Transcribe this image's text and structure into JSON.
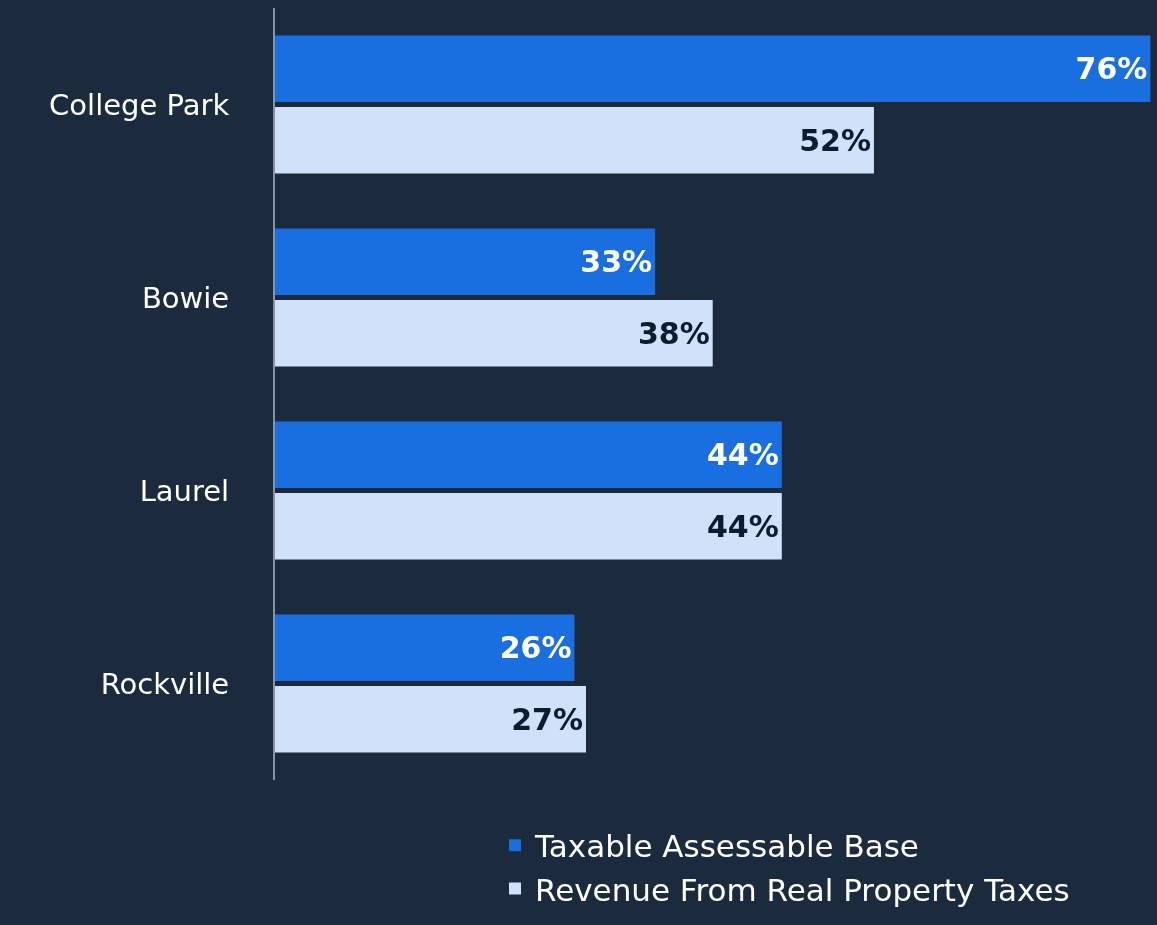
{
  "chart_data": {
    "type": "bar",
    "orientation": "horizontal",
    "categories": [
      "College Park",
      "Bowie",
      "Laurel",
      "Rockville"
    ],
    "series": [
      {
        "name": "Taxable Assessable Base",
        "color": "#1a6fe0",
        "values": [
          76,
          33,
          44,
          26
        ],
        "value_labels": [
          "76%",
          "33%",
          "44%",
          "26%"
        ]
      },
      {
        "name": "Revenue From Real Property Taxes",
        "color": "#cfe2f9",
        "values": [
          52,
          38,
          44,
          27
        ],
        "value_labels": [
          "52%",
          "38%",
          "44%",
          "27%"
        ]
      }
    ],
    "xlim": [
      0,
      76.4
    ],
    "tick_labels": "y",
    "grid": false,
    "legend": "bottom"
  }
}
